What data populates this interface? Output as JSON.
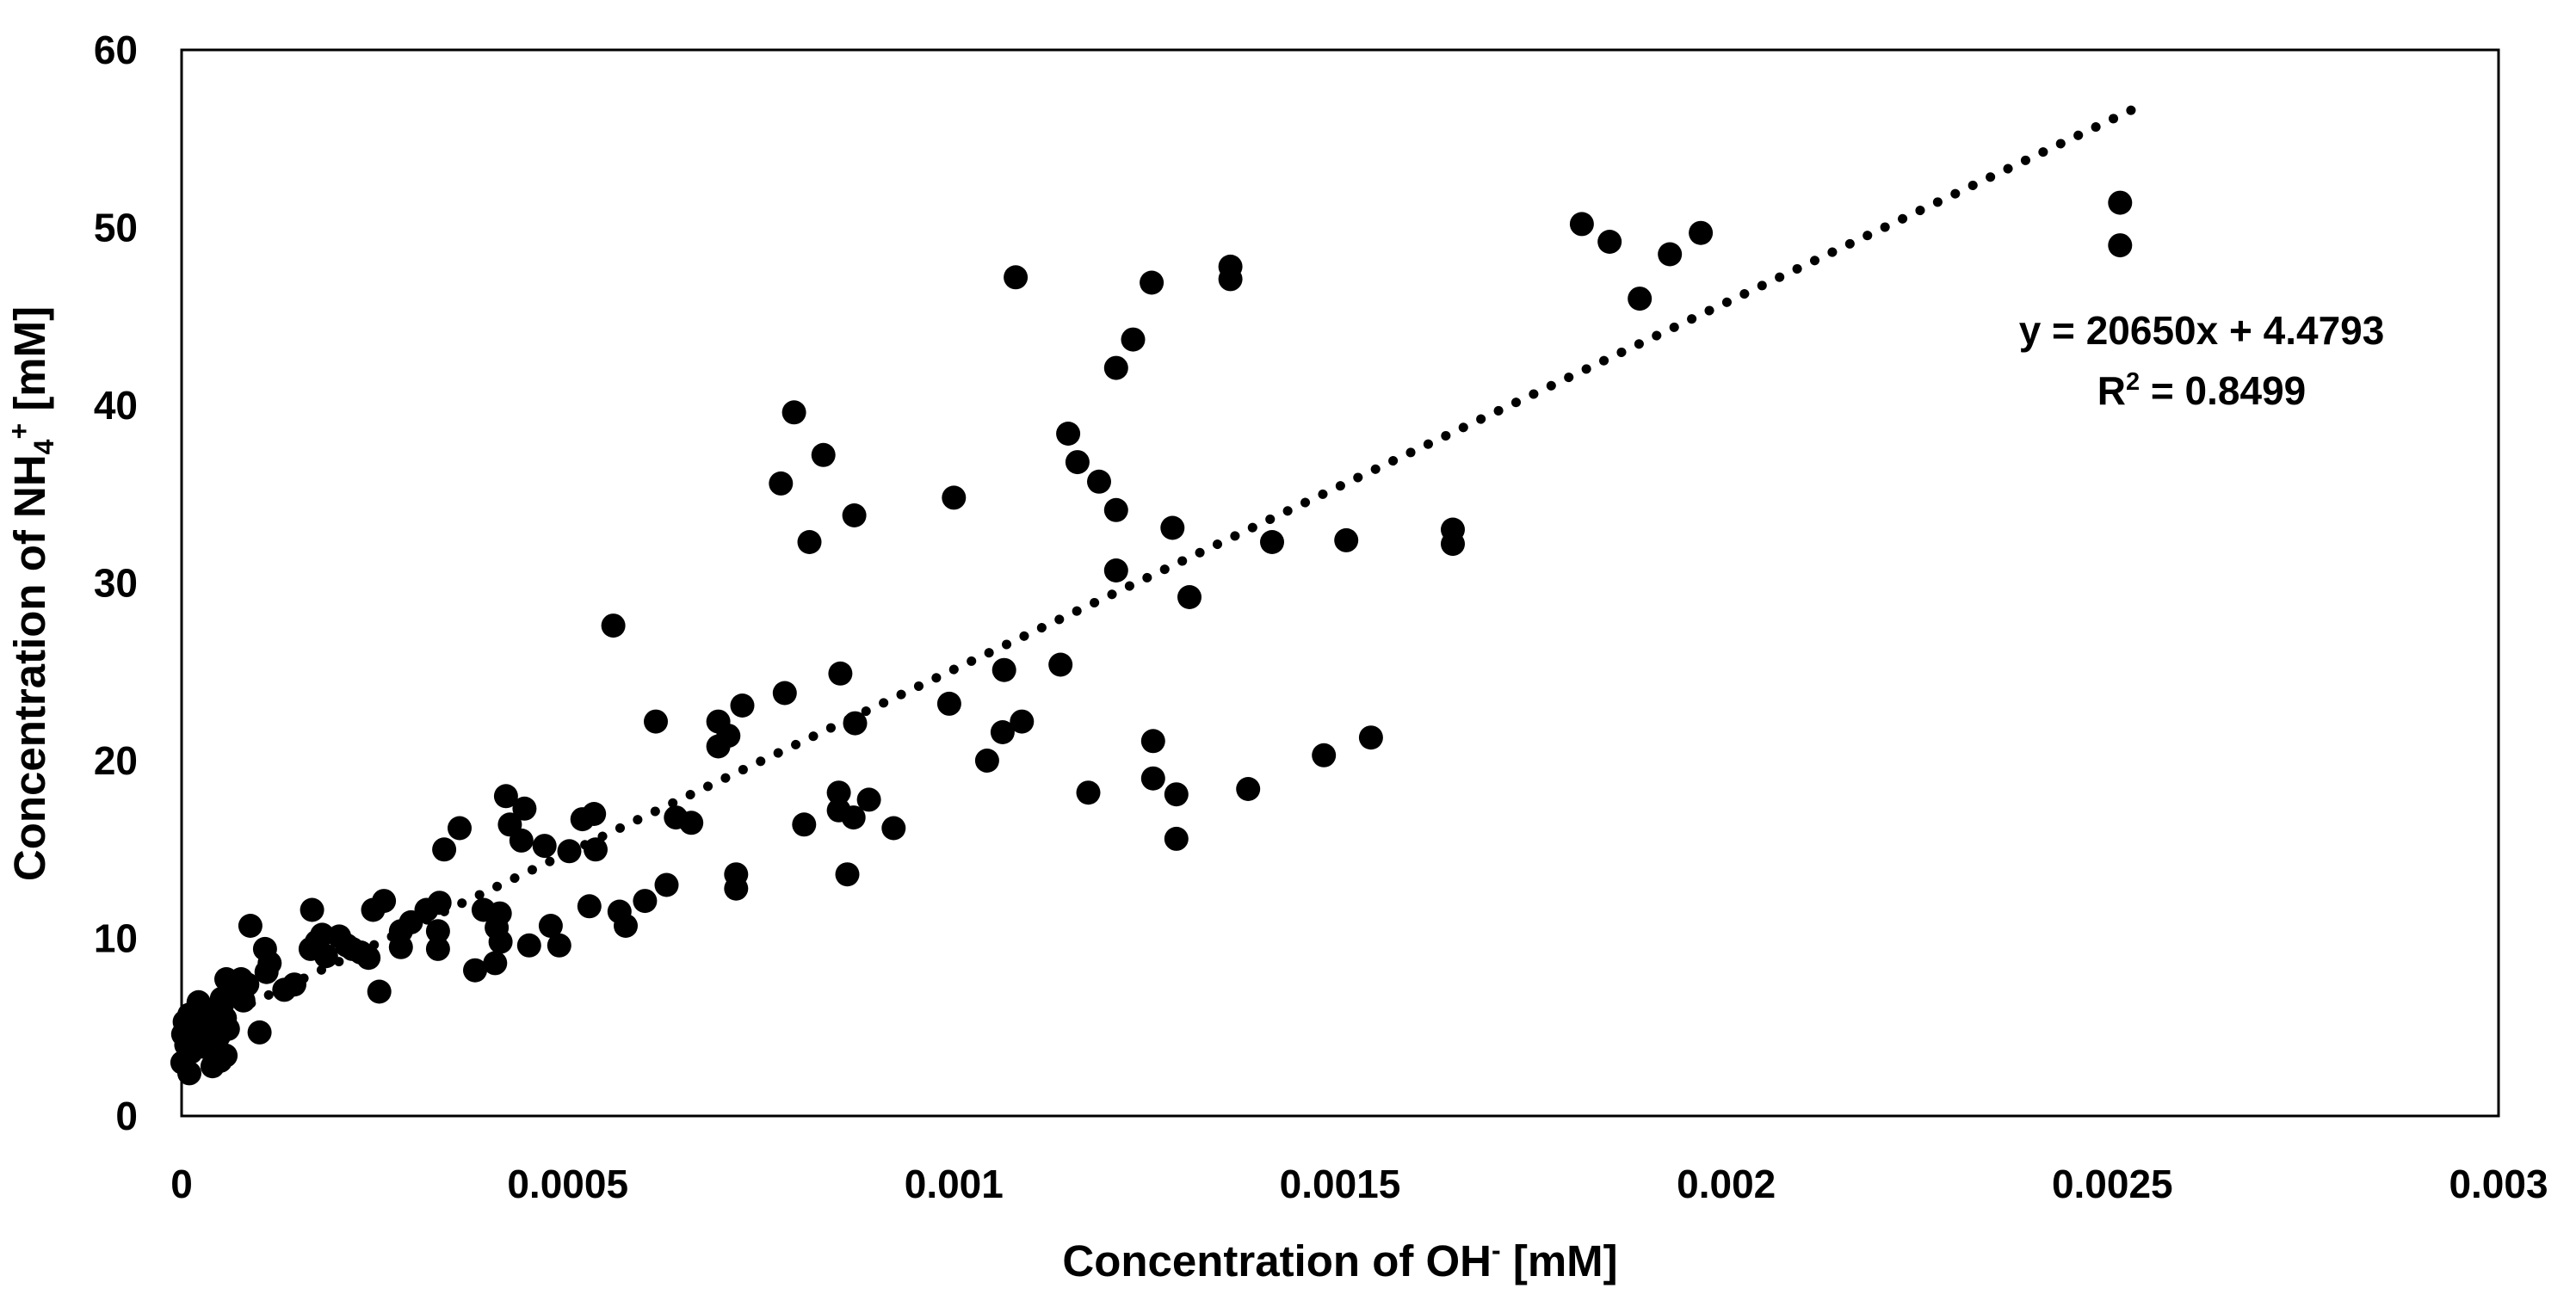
{
  "chart_data": {
    "type": "scatter",
    "title": "",
    "xlabel_parts": [
      {
        "t": "Concentration of OH",
        "s": "n"
      },
      {
        "t": "-",
        "s": "sup"
      },
      {
        "t": " [mM]",
        "s": "n"
      }
    ],
    "ylabel_parts": [
      {
        "t": "Concentration of NH",
        "s": "n"
      },
      {
        "t": "4",
        "s": "sub"
      },
      {
        "t": "+",
        "s": "sup"
      },
      {
        "t": " [mM]",
        "s": "n"
      }
    ],
    "xlabel_text": "Concentration of OH- [mM]",
    "ylabel_text": "Concentration of NH4+ [mM]",
    "xlim": [
      0,
      0.003
    ],
    "ylim": [
      0,
      60
    ],
    "x_ticks": {
      "values": [
        0,
        0.0005,
        0.001,
        0.0015,
        0.002,
        0.0025,
        0.003
      ],
      "labels": [
        "0",
        "0.0005",
        "0.001",
        "0.0015",
        "0.002",
        "0.0025",
        "0.003"
      ]
    },
    "y_ticks": {
      "values": [
        0,
        10,
        20,
        30,
        40,
        50,
        60
      ],
      "labels": [
        "0",
        "10",
        "20",
        "30",
        "40",
        "50",
        "60"
      ]
    },
    "grid": false,
    "legend": false,
    "marker_color": "#000000",
    "background": "#ffffff",
    "frame_color": "#000000",
    "trendline": {
      "slope": 20650,
      "intercept": 4.4793,
      "x_start": 9e-05,
      "x_end": 0.002525,
      "style": "dotted",
      "equation": "y = 20650x + 4.4793",
      "r_squared_text": "R² = 0.8499",
      "r_squared_parts": [
        {
          "t": "R",
          "s": "n"
        },
        {
          "t": "2",
          "s": "sup"
        },
        {
          "t": " = 0.8499",
          "s": "n"
        }
      ]
    },
    "points": [
      [
        1e-06,
        3.0
      ],
      [
        2e-06,
        4.6
      ],
      [
        4e-06,
        5.3
      ],
      [
        6e-06,
        4.0
      ],
      [
        8e-06,
        4.9
      ],
      [
        1e-05,
        5.7
      ],
      [
        1e-05,
        2.4
      ],
      [
        1.2e-05,
        3.6
      ],
      [
        1.4e-05,
        4.4
      ],
      [
        1.6e-05,
        5.1
      ],
      [
        1.8e-05,
        4.1
      ],
      [
        2e-05,
        5.9
      ],
      [
        2.2e-05,
        6.4
      ],
      [
        2.4e-05,
        4.6
      ],
      [
        2.8e-05,
        3.9
      ],
      [
        3.2e-05,
        5.4
      ],
      [
        3.6e-05,
        4.3
      ],
      [
        4e-05,
        5.0
      ],
      [
        4e-05,
        2.8
      ],
      [
        4.4e-05,
        5.8
      ],
      [
        4.8e-05,
        4.5
      ],
      [
        5e-05,
        3.1
      ],
      [
        5.2e-05,
        6.2
      ],
      [
        5.6e-05,
        5.5
      ],
      [
        5.7e-05,
        3.4
      ],
      [
        6e-05,
        4.9
      ],
      [
        5.2e-05,
        6.6
      ],
      [
        5.8e-05,
        7.7
      ],
      [
        6.4e-05,
        6.9
      ],
      [
        7.7e-05,
        7.7
      ],
      [
        8e-05,
        6.5
      ],
      [
        8.5e-05,
        7.4
      ],
      [
        0.000101,
        4.7
      ],
      [
        0.00011,
        8.1
      ],
      [
        0.000133,
        7.1
      ],
      [
        0.000146,
        7.4
      ],
      [
        8.9e-05,
        10.7
      ],
      [
        0.000108,
        9.4
      ],
      [
        0.000114,
        8.6
      ],
      [
        0.000167,
        9.4
      ],
      [
        0.000175,
        9.8
      ],
      [
        0.000182,
        10.2
      ],
      [
        0.000187,
        9.0
      ],
      [
        0.000169,
        11.6
      ],
      [
        0.000204,
        10.1
      ],
      [
        0.000214,
        9.6
      ],
      [
        0.000221,
        9.4
      ],
      [
        0.000232,
        9.2
      ],
      [
        0.000242,
        8.9
      ],
      [
        0.000256,
        7.0
      ],
      [
        0.000284,
        9.5
      ],
      [
        0.000284,
        10.4
      ],
      [
        0.000297,
        10.9
      ],
      [
        0.000248,
        11.6
      ],
      [
        0.000262,
        12.1
      ],
      [
        0.000317,
        11.6
      ],
      [
        0.000334,
        12.0
      ],
      [
        0.000332,
        10.4
      ],
      [
        0.000332,
        9.4
      ],
      [
        0.00036,
        16.2
      ],
      [
        0.00034,
        15.0
      ],
      [
        0.000391,
        11.6
      ],
      [
        0.000412,
        11.4
      ],
      [
        0.000408,
        10.6
      ],
      [
        0.000413,
        9.8
      ],
      [
        0.00045,
        9.6
      ],
      [
        0.000489,
        9.6
      ],
      [
        0.00038,
        8.2
      ],
      [
        0.000406,
        8.6
      ],
      [
        0.000478,
        10.7
      ],
      [
        0.00042,
        18.0
      ],
      [
        0.000444,
        17.3
      ],
      [
        0.000425,
        16.4
      ],
      [
        0.00044,
        15.5
      ],
      [
        0.00047,
        15.2
      ],
      [
        0.000519,
        16.7
      ],
      [
        0.000534,
        17.0
      ],
      [
        0.000502,
        14.9
      ],
      [
        0.000536,
        15.0
      ],
      [
        0.00064,
        16.8
      ],
      [
        0.00066,
        16.5
      ],
      [
        0.000567,
        11.5
      ],
      [
        0.000575,
        10.7
      ],
      [
        0.000528,
        11.8
      ],
      [
        0.000628,
        13.0
      ],
      [
        0.0006,
        12.1
      ],
      [
        0.000718,
        13.6
      ],
      [
        0.000718,
        12.8
      ],
      [
        0.000559,
        27.6
      ],
      [
        0.000614,
        22.2
      ],
      [
        0.000695,
        22.2
      ],
      [
        0.000726,
        23.1
      ],
      [
        0.000708,
        21.4
      ],
      [
        0.000695,
        20.8
      ],
      [
        0.000781,
        23.8
      ],
      [
        0.000853,
        24.9
      ],
      [
        0.000872,
        22.1
      ],
      [
        0.000994,
        23.2
      ],
      [
        0.001063,
        21.6
      ],
      [
        0.001088,
        22.2
      ],
      [
        0.001043,
        20.0
      ],
      [
        0.001065,
        25.1
      ],
      [
        0.001138,
        25.4
      ],
      [
        0.000806,
        16.4
      ],
      [
        0.00089,
        17.8
      ],
      [
        0.00087,
        16.8
      ],
      [
        0.000922,
        16.2
      ],
      [
        0.000851,
        18.2
      ],
      [
        0.000851,
        17.2
      ],
      [
        0.000862,
        13.6
      ],
      [
        0.000793,
        39.6
      ],
      [
        0.000831,
        37.2
      ],
      [
        0.000776,
        35.6
      ],
      [
        0.000871,
        33.8
      ],
      [
        0.000813,
        32.3
      ],
      [
        0.001,
        34.8
      ],
      [
        0.00108,
        47.2
      ],
      [
        0.001148,
        38.4
      ],
      [
        0.00116,
        36.8
      ],
      [
        0.001188,
        35.7
      ],
      [
        0.00121,
        34.1
      ],
      [
        0.00121,
        42.1
      ],
      [
        0.001232,
        43.7
      ],
      [
        0.001256,
        46.9
      ],
      [
        0.001283,
        33.1
      ],
      [
        0.00121,
        30.7
      ],
      [
        0.001305,
        29.2
      ],
      [
        0.001358,
        47.8
      ],
      [
        0.001358,
        47.1
      ],
      [
        0.001412,
        32.3
      ],
      [
        0.001508,
        32.4
      ],
      [
        0.001646,
        33.0
      ],
      [
        0.001646,
        32.2
      ],
      [
        0.001174,
        18.2
      ],
      [
        0.001258,
        21.1
      ],
      [
        0.001258,
        19.0
      ],
      [
        0.001288,
        18.1
      ],
      [
        0.001288,
        15.6
      ],
      [
        0.001381,
        18.4
      ],
      [
        0.001479,
        20.3
      ],
      [
        0.00154,
        21.3
      ],
      [
        0.001813,
        50.2
      ],
      [
        0.001849,
        49.2
      ],
      [
        0.001927,
        48.5
      ],
      [
        0.001967,
        49.7
      ],
      [
        0.001888,
        46.0
      ],
      [
        0.00251,
        51.4
      ],
      [
        0.00251,
        49.0
      ]
    ]
  }
}
